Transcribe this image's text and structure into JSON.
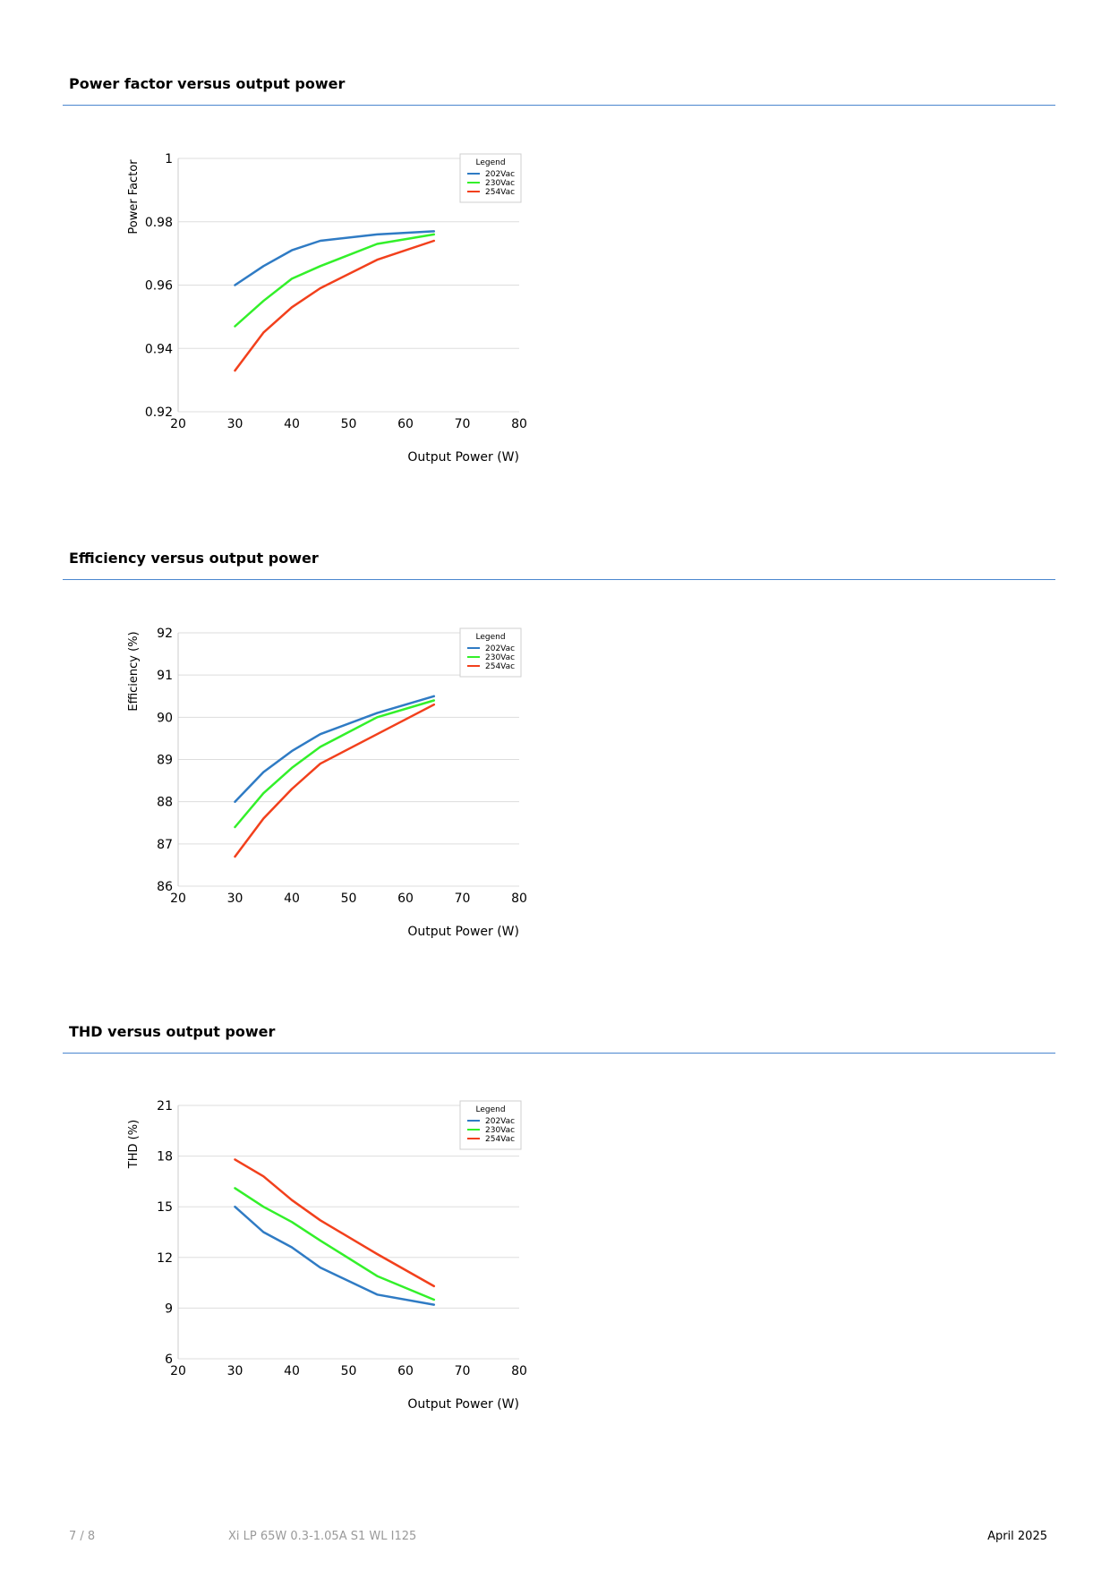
{
  "sections": [
    {
      "title": "Power factor versus output power"
    },
    {
      "title": "Efficiency versus output power"
    },
    {
      "title": "THD versus output power"
    }
  ],
  "chart_data": [
    {
      "type": "line",
      "title": "Power factor versus output power",
      "xlabel": "Output Power (W)",
      "ylabel": "Power Factor",
      "xlim": [
        20,
        80
      ],
      "ylim": [
        0.92,
        1
      ],
      "xticks": [
        20,
        30,
        40,
        50,
        60,
        70,
        80
      ],
      "yticks": [
        0.92,
        0.94,
        0.96,
        0.98,
        1
      ],
      "ytick_labels": [
        "0.92",
        "0.94",
        "0.96",
        "0.98",
        "1"
      ],
      "grid": true,
      "legend_title": "Legend",
      "legend_position": "top-right",
      "x": [
        30,
        35,
        40,
        45,
        55,
        65
      ],
      "series": [
        {
          "name": "202Vac",
          "color": "#2f7bc4",
          "values": [
            0.96,
            0.966,
            0.971,
            0.974,
            0.976,
            0.977
          ]
        },
        {
          "name": "230Vac",
          "color": "#33f02a",
          "values": [
            0.947,
            0.955,
            0.962,
            0.966,
            0.973,
            0.976
          ]
        },
        {
          "name": "254Vac",
          "color": "#f2401c",
          "values": [
            0.933,
            0.945,
            0.953,
            0.959,
            0.968,
            0.974
          ]
        }
      ]
    },
    {
      "type": "line",
      "title": "Efficiency versus output power",
      "xlabel": "Output Power (W)",
      "ylabel": "Efficiency (%)",
      "xlim": [
        20,
        80
      ],
      "ylim": [
        86,
        92
      ],
      "xticks": [
        20,
        30,
        40,
        50,
        60,
        70,
        80
      ],
      "yticks": [
        86,
        87,
        88,
        89,
        90,
        91,
        92
      ],
      "ytick_labels": [
        "86",
        "87",
        "88",
        "89",
        "90",
        "91",
        "92"
      ],
      "grid": true,
      "legend_title": "Legend",
      "legend_position": "top-right",
      "x": [
        30,
        35,
        40,
        45,
        55,
        65
      ],
      "series": [
        {
          "name": "202Vac",
          "color": "#2f7bc4",
          "values": [
            88.0,
            88.7,
            89.2,
            89.6,
            90.1,
            90.5
          ]
        },
        {
          "name": "230Vac",
          "color": "#33f02a",
          "values": [
            87.4,
            88.2,
            88.8,
            89.3,
            90.0,
            90.4
          ]
        },
        {
          "name": "254Vac",
          "color": "#f2401c",
          "values": [
            86.7,
            87.6,
            88.3,
            88.9,
            89.6,
            90.3
          ]
        }
      ]
    },
    {
      "type": "line",
      "title": "THD versus output power",
      "xlabel": "Output Power (W)",
      "ylabel": "THD (%)",
      "xlim": [
        20,
        80
      ],
      "ylim": [
        6,
        21
      ],
      "xticks": [
        20,
        30,
        40,
        50,
        60,
        70,
        80
      ],
      "yticks": [
        6,
        9,
        12,
        15,
        18,
        21
      ],
      "ytick_labels": [
        "6",
        "9",
        "12",
        "15",
        "18",
        "21"
      ],
      "grid": true,
      "legend_title": "Legend",
      "legend_position": "top-right",
      "x": [
        30,
        35,
        40,
        45,
        55,
        65
      ],
      "series": [
        {
          "name": "202Vac",
          "color": "#2f7bc4",
          "values": [
            15.0,
            13.5,
            12.6,
            11.4,
            9.8,
            9.2
          ]
        },
        {
          "name": "230Vac",
          "color": "#33f02a",
          "values": [
            16.1,
            15.0,
            14.1,
            13.0,
            10.9,
            9.5
          ]
        },
        {
          "name": "254Vac",
          "color": "#f2401c",
          "values": [
            17.8,
            16.8,
            15.4,
            14.2,
            12.2,
            10.3
          ]
        }
      ]
    }
  ],
  "footer": {
    "page": "7 / 8",
    "product": "Xi LP 65W 0.3-1.05A S1 WL I125",
    "date": "April 2025"
  }
}
